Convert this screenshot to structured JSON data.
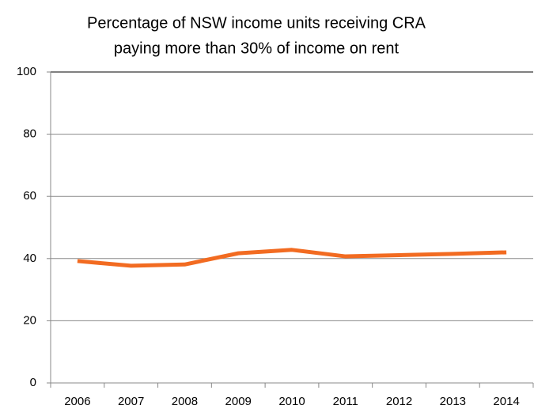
{
  "chart_data": {
    "type": "line",
    "title": [
      "Percentage of NSW income units receiving CRA",
      "paying more than 30% of income on rent"
    ],
    "categories": [
      "2006",
      "2007",
      "2008",
      "2009",
      "2010",
      "2011",
      "2012",
      "2013",
      "2014"
    ],
    "series": [
      {
        "color": "#f26b21",
        "values": [
          39.2,
          37.7,
          38.1,
          41.7,
          42.8,
          40.7,
          41.1,
          41.5,
          42.0
        ]
      }
    ],
    "ylim": [
      0,
      100
    ],
    "yticks": [
      0,
      20,
      40,
      60,
      80,
      100
    ],
    "grid": true
  }
}
